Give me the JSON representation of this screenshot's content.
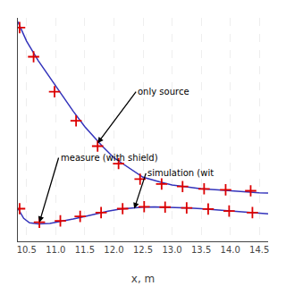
{
  "chart_data": {
    "type": "line",
    "xlabel": "x, m",
    "xlim": [
      10.35,
      14.65
    ],
    "ylim": [
      -0.05,
      1.1
    ],
    "xticks": [
      10.5,
      {
        "value": 11.0,
        "label": "11.0"
      },
      11.5,
      {
        "value": 12.0,
        "label": "12.0"
      },
      12.5,
      {
        "value": 13.0,
        "label": "13.0"
      },
      13.5,
      {
        "value": 14.0,
        "label": "14.0"
      },
      14.5
    ],
    "tick_labels": "x",
    "grid": true,
    "series": [
      {
        "type": "line",
        "color": "#3333bb",
        "x": [
          10.35,
          10.5,
          10.7,
          11.0,
          11.3,
          11.5,
          11.8,
          12.0,
          12.3,
          12.5,
          12.8,
          13.0,
          13.3,
          13.5,
          13.8,
          14.0,
          14.3,
          14.5,
          14.65
        ],
        "values": [
          1.08,
          0.98,
          0.88,
          0.75,
          0.62,
          0.54,
          0.44,
          0.38,
          0.32,
          0.28,
          0.255,
          0.24,
          0.228,
          0.22,
          0.215,
          0.21,
          0.205,
          0.2,
          0.198
        ]
      },
      {
        "type": "scatter",
        "color": "#dd0000",
        "marker": "plus",
        "x": [
          10.38,
          10.62,
          10.98,
          11.35,
          11.72,
          12.08,
          12.45,
          12.82,
          13.18,
          13.55,
          13.92,
          14.35
        ],
        "values": [
          1.05,
          0.9,
          0.72,
          0.57,
          0.44,
          0.35,
          0.27,
          0.245,
          0.232,
          0.22,
          0.215,
          0.21
        ]
      },
      {
        "type": "line",
        "color": "#3333bb",
        "x": [
          10.35,
          10.45,
          10.55,
          10.7,
          10.9,
          11.1,
          11.3,
          11.5,
          11.7,
          11.9,
          12.1,
          12.3,
          12.5,
          12.7,
          12.9,
          13.1,
          13.3,
          13.5,
          13.7,
          13.9,
          14.1,
          14.3,
          14.5,
          14.65
        ],
        "values": [
          0.12,
          0.068,
          0.045,
          0.04,
          0.042,
          0.052,
          0.065,
          0.078,
          0.092,
          0.105,
          0.116,
          0.122,
          0.126,
          0.127,
          0.126,
          0.124,
          0.121,
          0.118,
          0.114,
          0.11,
          0.106,
          0.1,
          0.095,
          0.091
        ]
      },
      {
        "type": "scatter",
        "color": "#dd0000",
        "marker": "plus",
        "x": [
          10.38,
          10.72,
          11.08,
          11.42,
          11.78,
          12.15,
          12.52,
          12.88,
          13.25,
          13.62,
          13.98,
          14.38
        ],
        "values": [
          0.118,
          0.048,
          0.055,
          0.078,
          0.098,
          0.118,
          0.128,
          0.126,
          0.122,
          0.116,
          0.106,
          0.098
        ]
      }
    ],
    "annotations": [
      {
        "text": "only source",
        "xy": [
          11.72,
          0.455
        ],
        "xytext": [
          12.38,
          0.72
        ]
      },
      {
        "text": "measure (with shield)",
        "xy": [
          10.72,
          0.048
        ],
        "xytext": [
          11.05,
          0.38
        ]
      },
      {
        "text": "simulation (wit",
        "xy": [
          12.35,
          0.118
        ],
        "xytext": [
          12.55,
          0.3
        ]
      }
    ]
  }
}
